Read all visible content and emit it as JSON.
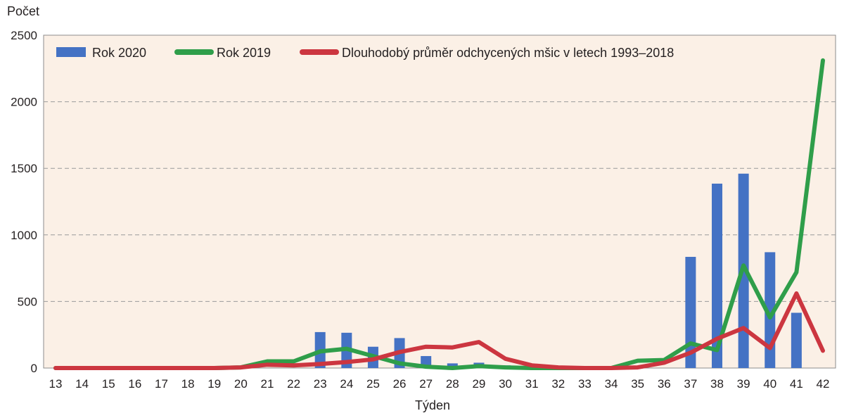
{
  "chart_data": {
    "type": "bar",
    "title": "",
    "xlabel": "Týden",
    "ylabel": "Počet",
    "ylim": [
      0,
      2500
    ],
    "yticks": [
      0,
      500,
      1000,
      1500,
      2000,
      2500
    ],
    "grid": true,
    "legend_position": "top",
    "categories": [
      "13",
      "14",
      "15",
      "16",
      "17",
      "18",
      "19",
      "20",
      "21",
      "22",
      "23",
      "24",
      "25",
      "26",
      "27",
      "28",
      "29",
      "30",
      "31",
      "32",
      "33",
      "34",
      "35",
      "36",
      "37",
      "38",
      "39",
      "40",
      "41",
      "42"
    ],
    "series": [
      {
        "name": "Rok 2020",
        "type": "bar",
        "color": "#4472c4",
        "values": [
          0,
          0,
          0,
          0,
          0,
          0,
          0,
          0,
          0,
          0,
          270,
          265,
          160,
          225,
          90,
          35,
          40,
          20,
          5,
          0,
          0,
          0,
          0,
          0,
          835,
          1385,
          1460,
          870,
          415,
          null
        ]
      },
      {
        "name": "Rok 2019",
        "type": "line",
        "color": "#2f9e4a",
        "values": [
          0,
          0,
          0,
          0,
          0,
          0,
          0,
          5,
          50,
          50,
          125,
          145,
          90,
          35,
          10,
          0,
          15,
          5,
          0,
          0,
          0,
          0,
          55,
          60,
          185,
          135,
          770,
          380,
          720,
          2310
        ]
      },
      {
        "name": "Dlouhodobý průměr odchycených mšic v letech 1993–2018",
        "type": "line",
        "color": "#cc3640",
        "values": [
          0,
          0,
          0,
          0,
          0,
          0,
          0,
          5,
          25,
          20,
          30,
          45,
          65,
          120,
          160,
          155,
          195,
          70,
          20,
          5,
          0,
          0,
          5,
          40,
          115,
          220,
          300,
          150,
          560,
          130
        ]
      }
    ]
  }
}
